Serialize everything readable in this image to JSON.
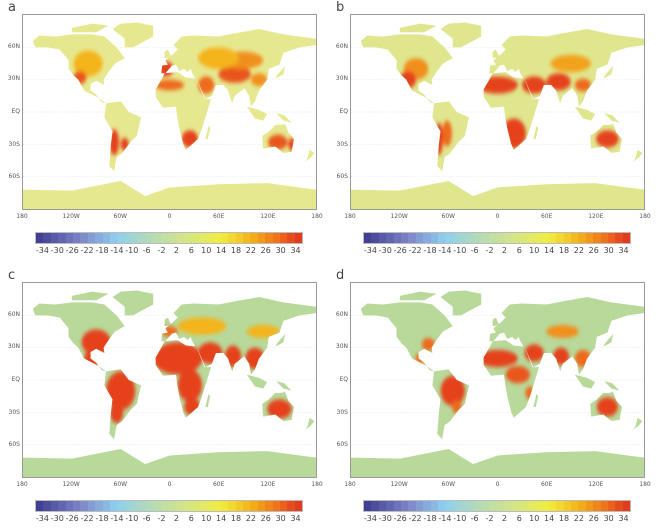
{
  "lat_labels": [
    "60N",
    "30N",
    "EQ",
    "30S",
    "60S"
  ],
  "lon_labels": [
    "180",
    "120W",
    "60W",
    "0",
    "60E",
    "120E",
    "180"
  ],
  "colorbar": {
    "ticks": [
      "-34",
      "-30",
      "-26",
      "-22",
      "-18",
      "-14",
      "-10",
      "-6",
      "-2",
      "2",
      "6",
      "10",
      "14",
      "18",
      "22",
      "26",
      "30",
      "34"
    ],
    "range": [
      -36,
      36
    ],
    "stops": [
      [
        -36,
        "#3b3a8f"
      ],
      [
        -24,
        "#7d86c8"
      ],
      [
        -14,
        "#8fd0f0"
      ],
      [
        -4,
        "#b8dcb0"
      ],
      [
        4,
        "#d2e48a"
      ],
      [
        14,
        "#f0ee40"
      ],
      [
        22,
        "#f4b41a"
      ],
      [
        30,
        "#ee6a1a"
      ],
      [
        36,
        "#e0301e"
      ]
    ]
  },
  "panels": [
    {
      "letter": "a",
      "land_color": "#e6e890",
      "hotspots": [
        [
          -100,
          45,
          18,
          12,
          22
        ],
        [
          -110,
          32,
          8,
          6,
          32
        ],
        [
          -5,
          40,
          10,
          7,
          34
        ],
        [
          0,
          25,
          18,
          5,
          30
        ],
        [
          45,
          25,
          10,
          8,
          30
        ],
        [
          80,
          35,
          20,
          8,
          32
        ],
        [
          90,
          48,
          25,
          8,
          26
        ],
        [
          60,
          50,
          25,
          10,
          22
        ],
        [
          25,
          -25,
          10,
          8,
          34
        ],
        [
          -68,
          -28,
          6,
          12,
          34
        ],
        [
          -55,
          -30,
          5,
          6,
          34
        ],
        [
          133,
          -28,
          12,
          7,
          32
        ],
        [
          150,
          -30,
          4,
          6,
          34
        ],
        [
          110,
          30,
          10,
          6,
          26
        ]
      ]
    },
    {
      "letter": "b",
      "land_color": "#dfe68e",
      "hotspots": [
        [
          -100,
          40,
          15,
          10,
          26
        ],
        [
          -110,
          30,
          10,
          8,
          34
        ],
        [
          0,
          25,
          25,
          8,
          34
        ],
        [
          45,
          25,
          15,
          8,
          34
        ],
        [
          75,
          28,
          15,
          8,
          34
        ],
        [
          90,
          45,
          25,
          8,
          24
        ],
        [
          20,
          -20,
          15,
          14,
          34
        ],
        [
          -62,
          -20,
          6,
          12,
          30
        ],
        [
          -72,
          -25,
          5,
          15,
          34
        ],
        [
          135,
          -25,
          14,
          8,
          34
        ],
        [
          105,
          25,
          10,
          6,
          30
        ]
      ]
    },
    {
      "letter": "c",
      "land_color": "#b8d99a",
      "hotspots": [
        [
          -90,
          35,
          18,
          12,
          34
        ],
        [
          -95,
          20,
          10,
          8,
          34
        ],
        [
          -60,
          -10,
          18,
          18,
          34
        ],
        [
          -65,
          -30,
          8,
          10,
          34
        ],
        [
          10,
          20,
          30,
          15,
          34
        ],
        [
          25,
          -5,
          15,
          15,
          34
        ],
        [
          28,
          -25,
          10,
          8,
          34
        ],
        [
          50,
          25,
          15,
          10,
          34
        ],
        [
          78,
          22,
          10,
          10,
          34
        ],
        [
          105,
          20,
          12,
          10,
          34
        ],
        [
          115,
          45,
          20,
          6,
          22
        ],
        [
          40,
          50,
          30,
          8,
          22
        ],
        [
          135,
          -27,
          15,
          9,
          34
        ],
        [
          0,
          45,
          10,
          5,
          30
        ]
      ]
    },
    {
      "letter": "d",
      "land_color": "#b8d99a",
      "hotspots": [
        [
          -85,
          33,
          8,
          6,
          30
        ],
        [
          -95,
          20,
          6,
          5,
          30
        ],
        [
          -55,
          -10,
          15,
          14,
          34
        ],
        [
          -50,
          -25,
          6,
          6,
          30
        ],
        [
          0,
          20,
          25,
          8,
          34
        ],
        [
          25,
          5,
          15,
          8,
          32
        ],
        [
          45,
          25,
          12,
          8,
          34
        ],
        [
          78,
          22,
          10,
          8,
          34
        ],
        [
          105,
          20,
          10,
          8,
          30
        ],
        [
          80,
          45,
          20,
          6,
          26
        ],
        [
          40,
          -12,
          6,
          6,
          30
        ],
        [
          135,
          -25,
          13,
          9,
          34
        ]
      ]
    }
  ]
}
